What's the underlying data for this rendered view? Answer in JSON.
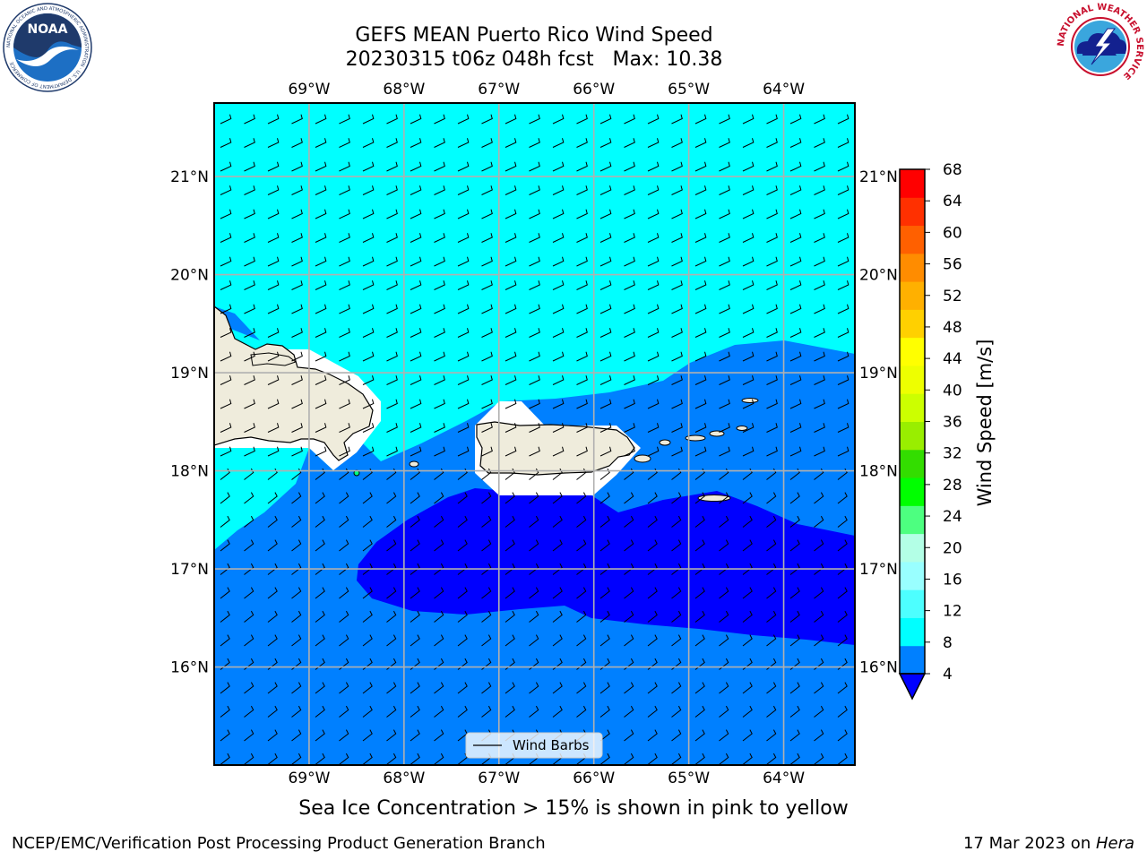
{
  "header": {
    "title_line1": "GEFS MEAN Puerto Rico Wind Speed",
    "title_line2": "20230315 t06z 048h fcst   Max: 10.38"
  },
  "logos": {
    "left": {
      "name": "noaa-logo",
      "text": "NOAA",
      "ring_text": "NATIONAL OCEANIC AND ATMOSPHERIC ADMINISTRATION · U.S. DEPARTMENT OF COMMERCE"
    },
    "right": {
      "name": "nws-logo",
      "ring_text": "NATIONAL WEATHER SERVICE"
    }
  },
  "map": {
    "lon_ticks": [
      "69°W",
      "68°W",
      "67°W",
      "66°W",
      "65°W",
      "64°W"
    ],
    "lat_ticks": [
      "21°N",
      "20°N",
      "19°N",
      "18°N",
      "17°N",
      "16°N"
    ],
    "lon_values": [
      -69,
      -68,
      -67,
      -66,
      -65,
      -64
    ],
    "lat_values": [
      21,
      20,
      19,
      18,
      17,
      16
    ],
    "lon_range": [
      -70,
      -63.25
    ],
    "lat_range": [
      15,
      21.75
    ],
    "grid": true,
    "legend": {
      "label": "Wind Barbs",
      "placement": "bottom-center"
    },
    "fill_colors": {
      "4-8": "#0080ff",
      "below-4": "#0000ff",
      "8-12": "#00ffff",
      "land": "#efecdc",
      "nodata": "#ffffff"
    }
  },
  "colorbar": {
    "label": "Wind Speed [m/s]",
    "ticks": [
      "68",
      "64",
      "60",
      "56",
      "52",
      "48",
      "44",
      "40",
      "36",
      "32",
      "28",
      "24",
      "20",
      "16",
      "12",
      "8",
      "4"
    ],
    "colors": [
      "#0080ff",
      "#00ffff",
      "#4dffff",
      "#99ffff",
      "#b3ffe6",
      "#4dff80",
      "#00ff00",
      "#33dd00",
      "#99ee00",
      "#ccff00",
      "#eeff00",
      "#ffff00",
      "#ffd000",
      "#ffb000",
      "#ff8c00",
      "#ff6000",
      "#ff3000",
      "#ff0000"
    ],
    "under_color": "#0000ff",
    "extend": "min"
  },
  "notes": {
    "ice": "Sea Ice Concentration > 15% is shown in pink to yellow"
  },
  "footer": {
    "left": "NCEP/EMC/Verification Post Processing Product Generation Branch",
    "date": "17 Mar 2023 on ",
    "machine": "Hera"
  }
}
